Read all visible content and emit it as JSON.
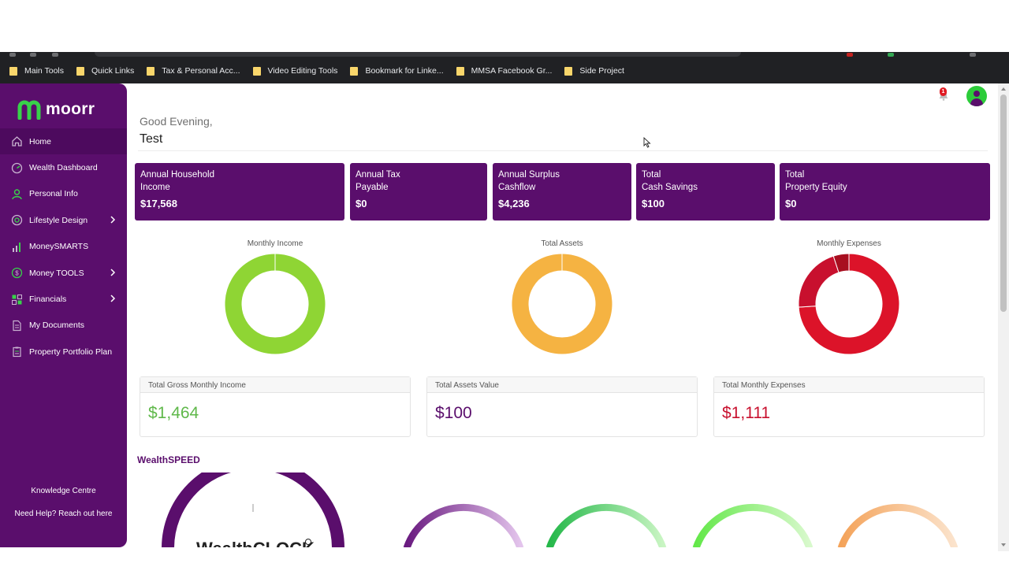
{
  "bookmarks": [
    "Main Tools",
    "Quick Links",
    "Tax & Personal Acc...",
    "Video Editing Tools",
    "Bookmark for Linke...",
    "MMSA Facebook Gr...",
    "Side Project"
  ],
  "brand": {
    "name": "moorr",
    "accent": "#5a0e6c",
    "logo_green": "#38d24a"
  },
  "sidebar": {
    "items": [
      {
        "label": "Home",
        "icon": "home-icon",
        "has_submenu": false,
        "active": true
      },
      {
        "label": "Wealth Dashboard",
        "icon": "gauge-icon",
        "has_submenu": false
      },
      {
        "label": "Personal Info",
        "icon": "person-icon",
        "has_submenu": false
      },
      {
        "label": "Lifestyle Design",
        "icon": "target-icon",
        "has_submenu": true
      },
      {
        "label": "MoneySMARTS",
        "icon": "bar-chart-icon",
        "has_submenu": false
      },
      {
        "label": "Money TOOLS",
        "icon": "dollar-coin-icon",
        "has_submenu": true
      },
      {
        "label": "Financials",
        "icon": "grid-icon",
        "has_submenu": true
      },
      {
        "label": "My Documents",
        "icon": "document-icon",
        "has_submenu": false
      },
      {
        "label": "Property Portfolio Plan",
        "icon": "clipboard-icon",
        "has_submenu": false
      }
    ],
    "knowledge_centre": "Knowledge Centre",
    "help": "Need Help? Reach out here"
  },
  "header": {
    "notification_count": "1"
  },
  "greeting": {
    "line1": "Good Evening,",
    "name": "Test"
  },
  "summary_cards": [
    {
      "label": "Annual Household\nIncome",
      "value": "$17,568"
    },
    {
      "label": "Annual Tax\nPayable",
      "value": "$0"
    },
    {
      "label": "Annual Surplus\nCashflow",
      "value": "$4,236"
    },
    {
      "label": "Total\nCash Savings",
      "value": "$100"
    },
    {
      "label": "Total\nProperty Equity",
      "value": "$0"
    }
  ],
  "charts": [
    {
      "title": "Monthly Income",
      "color": "#8fd534",
      "segments": [
        1.0
      ]
    },
    {
      "title": "Total Assets",
      "color": "#f5b342",
      "segments": [
        1.0
      ]
    },
    {
      "title": "Monthly Expenses",
      "color": "#dc1329",
      "segments": [
        0.74,
        0.21,
        0.05
      ]
    }
  ],
  "stats": [
    {
      "label": "Total Gross Monthly Income",
      "value": "$1,464",
      "color": "#5fb84a"
    },
    {
      "label": "Total Assets Value",
      "value": "$100",
      "color": "#5a0e6c"
    },
    {
      "label": "Total Monthly Expenses",
      "value": "$1,111",
      "color": "#c8102e"
    }
  ],
  "wealthspeed": {
    "title": "WealthSPEED"
  }
}
